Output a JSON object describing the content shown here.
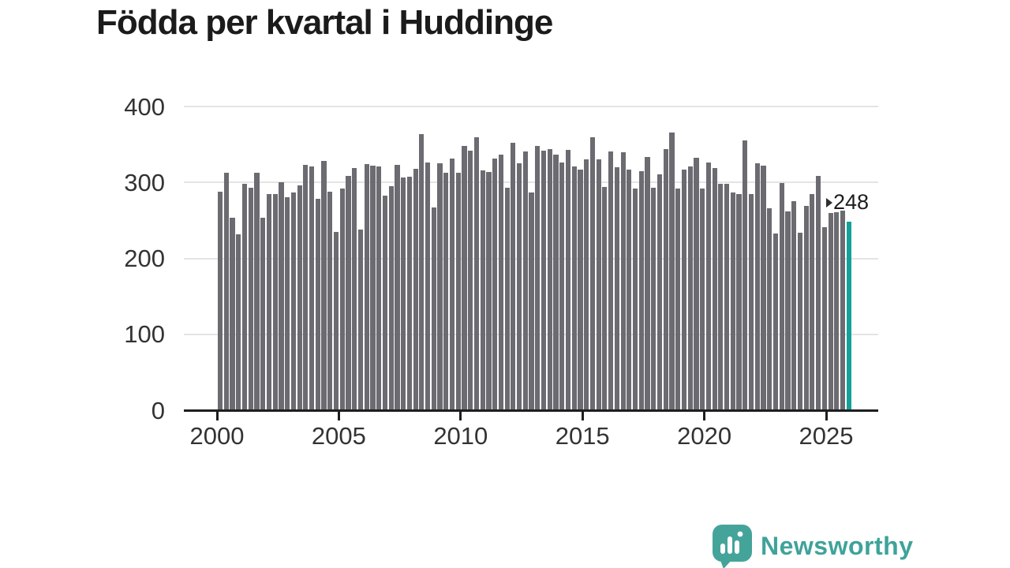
{
  "title": "Födda per kvartal i Huddinge",
  "annotation": {
    "label": "248"
  },
  "logo": {
    "text": "Newsworthy"
  },
  "colors": {
    "bar": "#6b6b71",
    "highlight_bar": "#14a099",
    "title_text": "#1b1b1b",
    "axis_text": "#333333",
    "gridline": "#e4e4e4",
    "axis_line": "#1e1e1e",
    "logo_teal": "#45a49a"
  },
  "chart_data": {
    "type": "bar",
    "title": "Födda per kvartal i Huddinge",
    "frequency": "quarterly",
    "start": "2000-Q1",
    "end": "2025-Q4",
    "xlabel": "",
    "ylabel": "",
    "ylim": [
      0,
      400
    ],
    "grid": true,
    "y_ticks": [
      0,
      100,
      200,
      300,
      400
    ],
    "y_tick_labels": [
      "0",
      "100",
      "200",
      "300",
      "400"
    ],
    "x_tick_years": [
      2000,
      2005,
      2010,
      2015,
      2020,
      2025
    ],
    "x_tick_labels": [
      "2000",
      "2005",
      "2010",
      "2015",
      "2020",
      "2025"
    ],
    "values": [
      288,
      313,
      253,
      232,
      298,
      293,
      313,
      253,
      285,
      285,
      300,
      281,
      287,
      296,
      323,
      321,
      278,
      328,
      288,
      235,
      292,
      309,
      319,
      238,
      324,
      322,
      321,
      283,
      295,
      323,
      306,
      308,
      318,
      364,
      326,
      267,
      325,
      313,
      331,
      313,
      348,
      342,
      359,
      316,
      314,
      331,
      337,
      293,
      352,
      325,
      341,
      287,
      348,
      342,
      344,
      337,
      326,
      343,
      321,
      317,
      330,
      359,
      330,
      294,
      341,
      320,
      340,
      317,
      292,
      315,
      334,
      293,
      311,
      344,
      366,
      292,
      317,
      321,
      332,
      292,
      326,
      319,
      298,
      298,
      287,
      285,
      355,
      285,
      325,
      322,
      266,
      233,
      299,
      262,
      275,
      234,
      269,
      285,
      309,
      241,
      260,
      261,
      263,
      248
    ],
    "highlight_last": true,
    "highlight_value": 248,
    "legend": null
  }
}
